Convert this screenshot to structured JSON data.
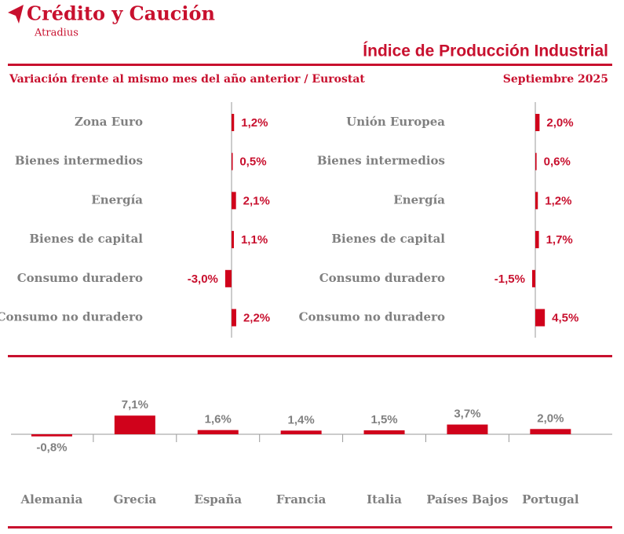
{
  "header": {
    "brand": "Crédito y Caución",
    "sub_brand": "Atradius",
    "title": "Índice de Producción Industrial",
    "subtitle": "Variación frente al mismo mes del año anterior / Eurostat",
    "date": "Septiembre 2025"
  },
  "chart_data": [
    {
      "type": "bar",
      "orientation": "horizontal",
      "color": "#d0021b",
      "categories": [
        "Zona Euro",
        "Bienes intermedios",
        "Energía",
        "Bienes de capital",
        "Consumo duradero",
        "Consumo no duradero"
      ],
      "values": [
        1.2,
        0.5,
        2.1,
        1.1,
        -3.0,
        2.2
      ],
      "value_labels": [
        "1,2%",
        "0,5%",
        "2,1%",
        "1,1%",
        "-3,0%",
        "2,2%"
      ]
    },
    {
      "type": "bar",
      "orientation": "horizontal",
      "color": "#d0021b",
      "categories": [
        "Unión Europea",
        "Bienes intermedios",
        "Energía",
        "Bienes de capital",
        "Consumo duradero",
        "Consumo no duradero"
      ],
      "values": [
        2.0,
        0.6,
        1.2,
        1.7,
        -1.5,
        4.5
      ],
      "value_labels": [
        "2,0%",
        "0,6%",
        "1,2%",
        "1,7%",
        "-1,5%",
        "4,5%"
      ]
    },
    {
      "type": "bar",
      "orientation": "vertical",
      "color": "#d0021b",
      "categories": [
        "Alemania",
        "Grecia",
        "España",
        "Francia",
        "Italia",
        "Países Bajos",
        "Portugal"
      ],
      "values": [
        -0.8,
        7.1,
        1.6,
        1.4,
        1.5,
        3.7,
        2.0
      ],
      "value_labels": [
        "-0,8%",
        "7,1%",
        "1,6%",
        "1,4%",
        "1,5%",
        "3,7%",
        "2,0%"
      ]
    }
  ]
}
